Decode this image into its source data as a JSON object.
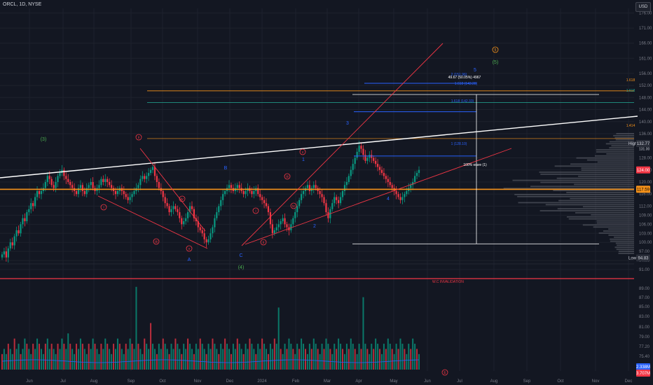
{
  "header": {
    "symbol": "ORCL",
    "interval": "1D",
    "exchange": "NYSE",
    "currency": "USD"
  },
  "colors": {
    "background": "#131722",
    "grid": "#1e222d",
    "up": "#089981",
    "down": "#f23645",
    "text": "#d1d4dc",
    "axis_text": "#787b86",
    "orange": "#f7931a",
    "fib_blue": "#2962ff",
    "teal": "#22ab94",
    "white": "#ffffff",
    "wave_red": "#f23645",
    "wave_blue": "#2962ff",
    "wave_green": "#4caf50"
  },
  "chart_data": {
    "type": "candlestick",
    "title": "",
    "x_ticks": [
      "Jun",
      "Jul",
      "Aug",
      "Sep",
      "Oct",
      "Nov",
      "Dec",
      "2024",
      "Feb",
      "Mar",
      "Apr",
      "May",
      "Jun",
      "Jul",
      "Aug",
      "Sep",
      "Oct",
      "Nov",
      "Dec"
    ],
    "price_axis": {
      "ticks": [
        176.0,
        171.0,
        166.0,
        161.0,
        156.0,
        152.0,
        148.0,
        144.0,
        140.0,
        136.0,
        128.0,
        124.0,
        120.0,
        116.0,
        112.0,
        109.0,
        106.0,
        103.0,
        100.0,
        97.0,
        94.0,
        91.0
      ],
      "range": [
        91.0,
        178.0
      ]
    },
    "volume_axis": {
      "ticks": [
        89.0,
        87.0,
        85.0,
        83.0,
        81.0,
        79.0,
        77.2,
        75.4
      ]
    },
    "price_labels": {
      "high": {
        "label": "High",
        "value": "132.77"
      },
      "last": {
        "value": "124.00"
      },
      "small": {
        "value": "131.00"
      },
      "hline": {
        "value": "117.59"
      },
      "low": {
        "label": "Low",
        "value": "94.83"
      },
      "vol1": {
        "value": "2.338M"
      },
      "vol2": {
        "value": "3.707M"
      }
    },
    "closes": [
      96,
      97,
      95,
      98,
      100,
      99,
      102,
      104,
      103,
      106,
      108,
      107,
      110,
      111,
      113,
      112,
      115,
      117,
      116,
      117,
      118,
      120,
      122,
      121,
      119,
      118,
      120,
      122,
      123,
      124,
      122,
      121,
      120,
      119,
      118,
      117,
      116,
      118,
      119,
      117,
      116,
      118,
      119,
      120,
      118,
      117,
      118,
      119,
      121,
      120,
      121,
      120,
      119,
      118,
      117,
      116,
      117,
      118,
      117,
      116,
      115,
      114,
      115,
      116,
      117,
      118,
      119,
      121,
      122,
      121,
      122,
      123,
      124,
      125,
      122,
      120,
      118,
      117,
      115,
      113,
      112,
      110,
      111,
      112,
      111,
      110,
      108,
      106,
      107,
      108,
      110,
      112,
      111,
      108,
      107,
      105,
      104,
      103,
      101,
      100,
      101,
      103,
      105,
      108,
      110,
      112,
      114,
      116,
      117,
      118,
      119,
      118,
      117,
      118,
      119,
      118,
      117,
      116,
      117,
      118,
      117,
      116,
      117,
      118,
      116,
      115,
      114,
      113,
      112,
      110,
      106,
      103,
      104,
      105,
      106,
      107,
      108,
      106,
      105,
      104,
      106,
      108,
      110,
      112,
      114,
      116,
      117,
      118,
      119,
      117,
      118,
      119,
      118,
      117,
      116,
      115,
      113,
      110,
      108,
      111,
      113,
      115,
      114,
      113,
      115,
      117,
      119,
      120,
      122,
      124,
      126,
      128,
      130,
      132,
      131,
      129,
      127,
      128,
      129,
      128,
      127,
      126,
      125,
      124,
      123,
      122,
      121,
      120,
      119,
      118,
      117,
      116,
      115,
      114,
      115,
      116,
      117,
      118,
      119,
      120,
      122,
      123,
      124
    ],
    "volumes": [
      3,
      4,
      3,
      5,
      4,
      3,
      6,
      4,
      5,
      3,
      4,
      6,
      5,
      4,
      3,
      5,
      4,
      6,
      5,
      4,
      3,
      5,
      6,
      4,
      5,
      4,
      3,
      5,
      4,
      6,
      5,
      4,
      7,
      5,
      4,
      3,
      5,
      4,
      6,
      5,
      4,
      3,
      5,
      4,
      6,
      5,
      4,
      3,
      5,
      4,
      6,
      5,
      4,
      3,
      5,
      4,
      6,
      5,
      4,
      3,
      5,
      4,
      6,
      5,
      4,
      16,
      5,
      4,
      3,
      6,
      5,
      4,
      9,
      5,
      4,
      3,
      5,
      4,
      6,
      5,
      4,
      3,
      5,
      4,
      6,
      5,
      4,
      3,
      5,
      4,
      6,
      5,
      4,
      3,
      5,
      4,
      6,
      5,
      4,
      3,
      5,
      4,
      6,
      5,
      4,
      3,
      5,
      4,
      6,
      5,
      4,
      3,
      5,
      4,
      6,
      5,
      4,
      3,
      5,
      4,
      6,
      5,
      4,
      3,
      5,
      4,
      6,
      5,
      4,
      3,
      5,
      4,
      6,
      5,
      12,
      4,
      3,
      5,
      4,
      6,
      5,
      4,
      3,
      5,
      4,
      6,
      5,
      4,
      3,
      5,
      4,
      6,
      5,
      4,
      3,
      5,
      4,
      6,
      5,
      4,
      3,
      5,
      4,
      6,
      5,
      4,
      3,
      5,
      4,
      6,
      5,
      4,
      3,
      5,
      4,
      14,
      5,
      4,
      3,
      5,
      4,
      6,
      5,
      4,
      3,
      5,
      4,
      6,
      5,
      4,
      3,
      5,
      4,
      6,
      5,
      4,
      3,
      5,
      4,
      6,
      5,
      4,
      3
    ]
  },
  "annotations": {
    "labels": [
      {
        "id": "w3g",
        "text": "(3)"
      },
      {
        "id": "w4g",
        "text": "(4)"
      },
      {
        "id": "w5g",
        "text": "(5)"
      },
      {
        "id": "w5o",
        "text": "5"
      },
      {
        "id": "A",
        "text": "A"
      },
      {
        "id": "B",
        "text": "B"
      },
      {
        "id": "C",
        "text": "C"
      },
      {
        "id": "b1",
        "text": "1"
      },
      {
        "id": "b2",
        "text": "2"
      },
      {
        "id": "b3",
        "text": "3"
      },
      {
        "id": "b4",
        "text": "4"
      },
      {
        "id": "b5",
        "text": "5"
      },
      {
        "id": "wi",
        "text": "i"
      },
      {
        "id": "wii",
        "text": "ii"
      },
      {
        "id": "wiii",
        "text": "iii"
      },
      {
        "id": "wiv",
        "text": "iv"
      },
      {
        "id": "wv",
        "text": "v"
      },
      {
        "id": "wi2",
        "text": "i"
      },
      {
        "id": "wii2",
        "text": "ii"
      },
      {
        "id": "wiii2",
        "text": "iii"
      },
      {
        "id": "wiv2",
        "text": "iv"
      },
      {
        "id": "wv2",
        "text": "v"
      },
      {
        "id": "ii3",
        "text": "ii"
      },
      {
        "id": "wavec_ii",
        "text": "ii"
      }
    ],
    "fib": {
      "level2": "2 (151.96)",
      "level1618b": "1.618 (143.28)",
      "level1618a": "1.618 (142.33)",
      "level1": "1 (128.10)",
      "fib1618": "1.618",
      "fib1618_teal": "1.618",
      "fib1414": "1.414",
      "measure": "49.67 (50.05%) 4967"
    },
    "wave_text": "100% wave (1)",
    "invalidation": "W.C INVALIDATION",
    "e_marker": "E"
  }
}
